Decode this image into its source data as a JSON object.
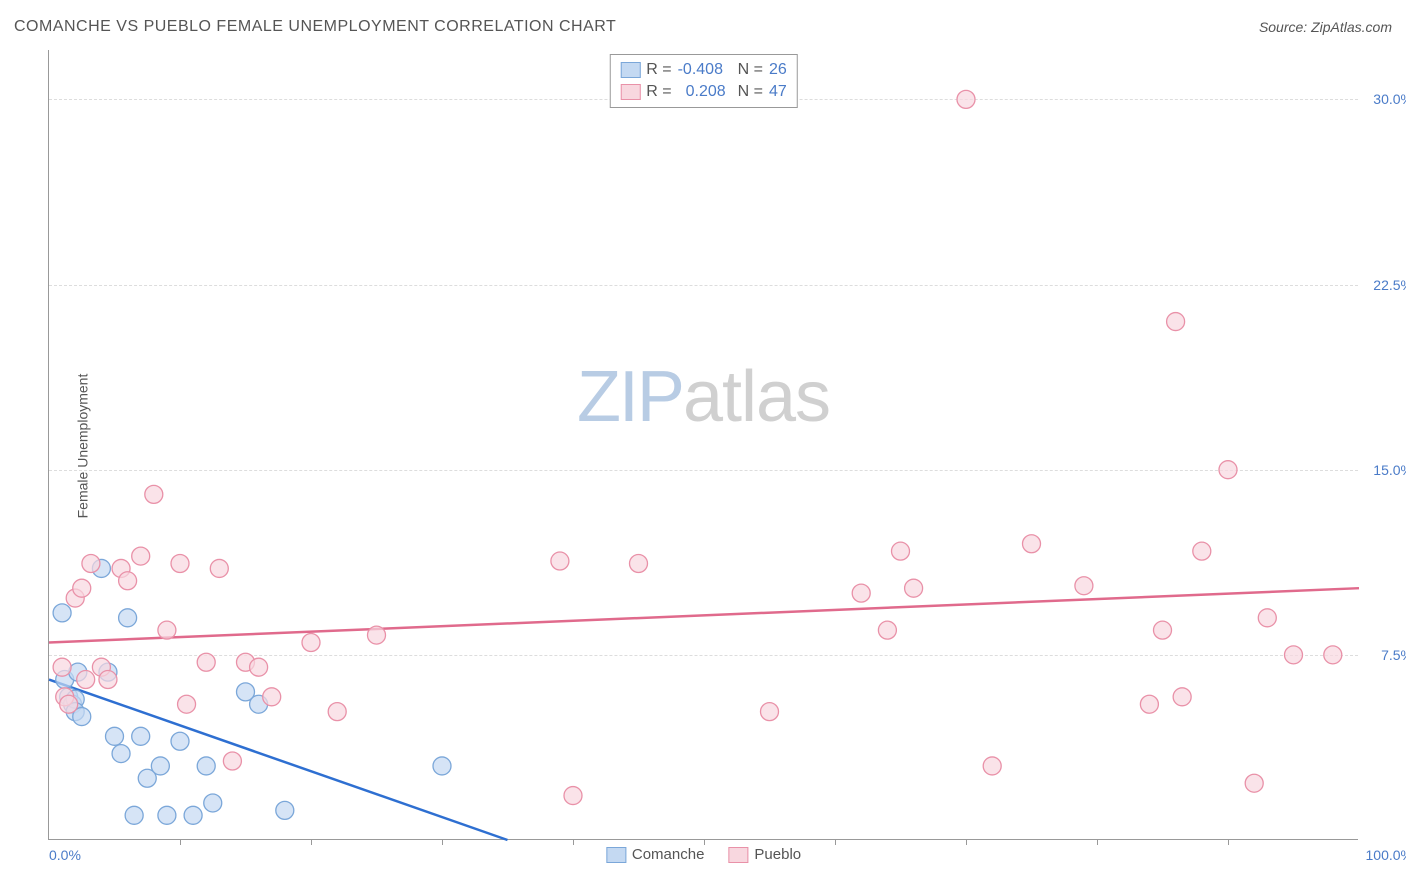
{
  "header": {
    "title": "COMANCHE VS PUEBLO FEMALE UNEMPLOYMENT CORRELATION CHART",
    "source_label": "Source:",
    "source_name": "ZipAtlas.com"
  },
  "chart": {
    "type": "scatter",
    "ylabel": "Female Unemployment",
    "xlim": [
      0,
      100
    ],
    "ylim": [
      0,
      32
    ],
    "yticks": [
      {
        "value": 7.5,
        "label": "7.5%"
      },
      {
        "value": 15.0,
        "label": "15.0%"
      },
      {
        "value": 22.5,
        "label": "22.5%"
      },
      {
        "value": 30.0,
        "label": "30.0%"
      }
    ],
    "xtick_positions": [
      10,
      20,
      30,
      40,
      50,
      60,
      70,
      80,
      90
    ],
    "xaxis_labels": {
      "left": "0.0%",
      "right": "100.0%"
    },
    "background_color": "#ffffff",
    "grid_color": "#dddddd",
    "marker_radius": 9,
    "marker_stroke_width": 1.3,
    "line_width": 2.5,
    "watermark": {
      "part1": "ZIP",
      "part2": "atlas"
    },
    "series": [
      {
        "name": "Comanche",
        "fill": "#c4d9f2",
        "stroke": "#7ba7d9",
        "line_color": "#2e6fd1",
        "trend": {
          "x1": 0,
          "y1": 6.5,
          "x2": 35,
          "y2": 0
        },
        "R_label": "R =",
        "R": "-0.408",
        "N_label": "N =",
        "N": "26",
        "points": [
          {
            "x": 1,
            "y": 9.2
          },
          {
            "x": 1.2,
            "y": 6.5
          },
          {
            "x": 1.5,
            "y": 5.8
          },
          {
            "x": 1.8,
            "y": 5.5
          },
          {
            "x": 2,
            "y": 5.7
          },
          {
            "x": 2,
            "y": 5.2
          },
          {
            "x": 2.2,
            "y": 6.8
          },
          {
            "x": 2.5,
            "y": 5.0
          },
          {
            "x": 4,
            "y": 11.0
          },
          {
            "x": 4.5,
            "y": 6.8
          },
          {
            "x": 5,
            "y": 4.2
          },
          {
            "x": 5.5,
            "y": 3.5
          },
          {
            "x": 6,
            "y": 9.0
          },
          {
            "x": 6.5,
            "y": 1.0
          },
          {
            "x": 7,
            "y": 4.2
          },
          {
            "x": 7.5,
            "y": 2.5
          },
          {
            "x": 8.5,
            "y": 3.0
          },
          {
            "x": 9,
            "y": 1.0
          },
          {
            "x": 10,
            "y": 4.0
          },
          {
            "x": 11,
            "y": 1.0
          },
          {
            "x": 12,
            "y": 3.0
          },
          {
            "x": 12.5,
            "y": 1.5
          },
          {
            "x": 15,
            "y": 6.0
          },
          {
            "x": 16,
            "y": 5.5
          },
          {
            "x": 18,
            "y": 1.2
          },
          {
            "x": 30,
            "y": 3.0
          }
        ]
      },
      {
        "name": "Pueblo",
        "fill": "#f8d7df",
        "stroke": "#e991a8",
        "line_color": "#e06a8c",
        "trend": {
          "x1": 0,
          "y1": 8.0,
          "x2": 100,
          "y2": 10.2
        },
        "R_label": "R =",
        "R": "0.208",
        "N_label": "N =",
        "N": "47",
        "points": [
          {
            "x": 1,
            "y": 7.0
          },
          {
            "x": 1.2,
            "y": 5.8
          },
          {
            "x": 1.5,
            "y": 5.5
          },
          {
            "x": 2,
            "y": 9.8
          },
          {
            "x": 2.5,
            "y": 10.2
          },
          {
            "x": 2.8,
            "y": 6.5
          },
          {
            "x": 3.2,
            "y": 11.2
          },
          {
            "x": 4,
            "y": 7.0
          },
          {
            "x": 4.5,
            "y": 6.5
          },
          {
            "x": 5.5,
            "y": 11.0
          },
          {
            "x": 6,
            "y": 10.5
          },
          {
            "x": 7,
            "y": 11.5
          },
          {
            "x": 8,
            "y": 14.0
          },
          {
            "x": 9,
            "y": 8.5
          },
          {
            "x": 10,
            "y": 11.2
          },
          {
            "x": 10.5,
            "y": 5.5
          },
          {
            "x": 12,
            "y": 7.2
          },
          {
            "x": 13,
            "y": 11.0
          },
          {
            "x": 14,
            "y": 3.2
          },
          {
            "x": 15,
            "y": 7.2
          },
          {
            "x": 16,
            "y": 7.0
          },
          {
            "x": 17,
            "y": 5.8
          },
          {
            "x": 20,
            "y": 8.0
          },
          {
            "x": 22,
            "y": 5.2
          },
          {
            "x": 25,
            "y": 8.3
          },
          {
            "x": 39,
            "y": 11.3
          },
          {
            "x": 40,
            "y": 1.8
          },
          {
            "x": 45,
            "y": 11.2
          },
          {
            "x": 55,
            "y": 5.2
          },
          {
            "x": 62,
            "y": 10.0
          },
          {
            "x": 64,
            "y": 8.5
          },
          {
            "x": 65,
            "y": 11.7
          },
          {
            "x": 66,
            "y": 10.2
          },
          {
            "x": 70,
            "y": 30.0
          },
          {
            "x": 72,
            "y": 3.0
          },
          {
            "x": 75,
            "y": 12.0
          },
          {
            "x": 79,
            "y": 10.3
          },
          {
            "x": 84,
            "y": 5.5
          },
          {
            "x": 85,
            "y": 8.5
          },
          {
            "x": 86,
            "y": 21.0
          },
          {
            "x": 86.5,
            "y": 5.8
          },
          {
            "x": 88,
            "y": 11.7
          },
          {
            "x": 90,
            "y": 15.0
          },
          {
            "x": 92,
            "y": 2.3
          },
          {
            "x": 93,
            "y": 9.0
          },
          {
            "x": 95,
            "y": 7.5
          },
          {
            "x": 98,
            "y": 7.5
          }
        ]
      }
    ],
    "legend_bottom": [
      {
        "name": "Comanche",
        "fill": "#c4d9f2",
        "stroke": "#7ba7d9"
      },
      {
        "name": "Pueblo",
        "fill": "#f8d7df",
        "stroke": "#e991a8"
      }
    ]
  }
}
